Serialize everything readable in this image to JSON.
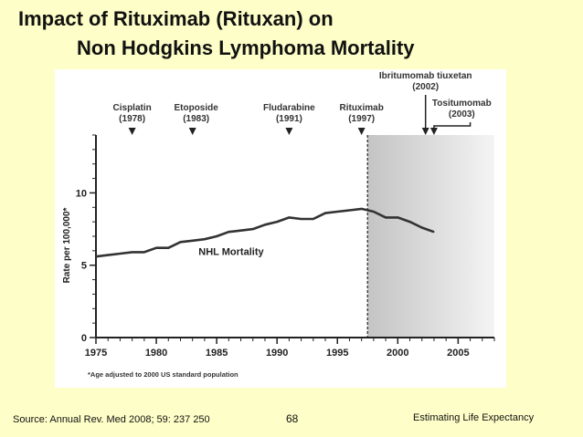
{
  "slide": {
    "title_line1": "Impact of Rituximab (Rituxan) on",
    "title_line2": "Non Hodgkins Lymphoma Mortality",
    "source": "Source: Annual Rev. Med 2008; 59: 237 250",
    "page_number": "68",
    "footer_right": "Estimating Life Expectancy"
  },
  "chart_data": {
    "type": "line",
    "title": "",
    "xlabel": "",
    "ylabel": "Rate per 100,000*",
    "footnote": "*Age adjusted to 2000 US standard population",
    "xlim": [
      1975,
      2008
    ],
    "ylim": [
      0,
      14
    ],
    "x_ticks": [
      1975,
      1980,
      1985,
      1990,
      1995,
      2000,
      2005
    ],
    "y_ticks": [
      0,
      5,
      10
    ],
    "series": [
      {
        "name": "NHL Mortality",
        "x": [
          1975,
          1976,
          1977,
          1978,
          1979,
          1980,
          1981,
          1982,
          1983,
          1984,
          1985,
          1986,
          1987,
          1988,
          1989,
          1990,
          1991,
          1992,
          1993,
          1994,
          1995,
          1996,
          1997,
          1998,
          1999,
          2000,
          2001,
          2002,
          2003
        ],
        "values": [
          5.6,
          5.7,
          5.8,
          5.9,
          5.9,
          6.2,
          6.2,
          6.6,
          6.7,
          6.8,
          7.0,
          7.3,
          7.4,
          7.5,
          7.8,
          8.0,
          8.3,
          8.2,
          8.2,
          8.6,
          8.7,
          8.8,
          8.9,
          8.7,
          8.3,
          8.3,
          8.0,
          7.6,
          7.3
        ]
      }
    ],
    "shaded_region": {
      "from": 1997.5,
      "to": 2008
    },
    "annotations": [
      {
        "label": "Cisplatin",
        "year_label": "(1978)",
        "x": 1978,
        "arrow": "down"
      },
      {
        "label": "Etoposide",
        "year_label": "(1983)",
        "x": 1983,
        "arrow": "down"
      },
      {
        "label": "Fludarabine",
        "year_label": "(1991)",
        "x": 1991,
        "arrow": "down"
      },
      {
        "label": "Rituximab",
        "year_label": "(1997)",
        "x": 1997,
        "arrow": "down"
      },
      {
        "label": "Ibritumomab tiuxetan",
        "year_label": "(2002)",
        "x": 2002.3,
        "arrow": "down"
      },
      {
        "label": "Tositumomab",
        "year_label": "(2003)",
        "x": 2003,
        "arrow": "down"
      }
    ],
    "grid": false,
    "legend": "inline"
  }
}
